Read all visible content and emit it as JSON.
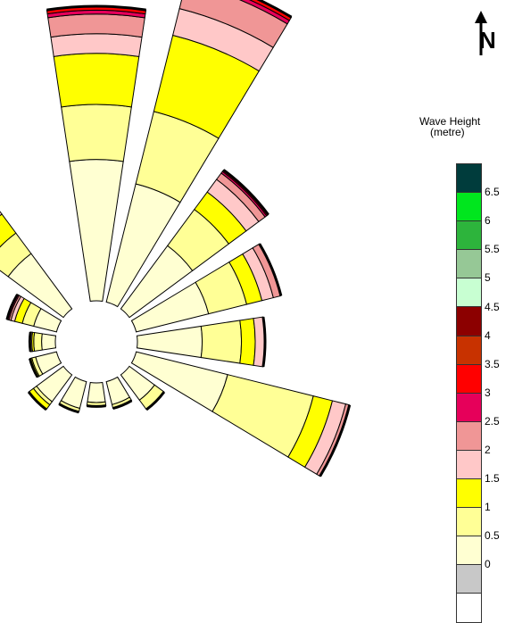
{
  "north_label": "N",
  "chart_data": {
    "type": "wave-rose",
    "title": "",
    "legend": {
      "title_line1": "Wave Height",
      "title_line2": "(metre)",
      "ticks": [
        "6.5",
        "6",
        "5.5",
        "5",
        "4.5",
        "4",
        "3.5",
        "3",
        "2.5",
        "2",
        "1.5",
        "1",
        "0.5",
        "0"
      ],
      "bins": [
        {
          "range": "> 6.5",
          "color": "#003c3c"
        },
        {
          "range": "6 - 6.5",
          "color": "#00e61e"
        },
        {
          "range": "5.5 - 6",
          "color": "#2db43c"
        },
        {
          "range": "5 - 5.5",
          "color": "#96c896"
        },
        {
          "range": "4.5 - 5",
          "color": "#c8ffd2"
        },
        {
          "range": "4 - 4.5",
          "color": "#8c0000"
        },
        {
          "range": "3.5 - 4",
          "color": "#c83200"
        },
        {
          "range": "3 - 3.5",
          "color": "#ff0000"
        },
        {
          "range": "2.5 - 3",
          "color": "#e6005a"
        },
        {
          "range": "2 - 2.5",
          "color": "#f09696"
        },
        {
          "range": "1.5 - 2",
          "color": "#ffc8c8"
        },
        {
          "range": "1 - 1.5",
          "color": "#ffff00"
        },
        {
          "range": "0.5 - 1",
          "color": "#ffff96"
        },
        {
          "range": "0 - 0.5",
          "color": "#ffffd2"
        },
        {
          "range": "calm",
          "color": "#c8c8c8"
        },
        {
          "range": "",
          "color": "#ffffff"
        }
      ]
    },
    "directions": [
      {
        "dir": "N",
        "angle": 0,
        "levels": [
          0.72,
          1.0,
          1.26,
          1.36,
          1.46,
          1.48,
          1.5
        ]
      },
      {
        "dir": "NNE",
        "angle": 22.5,
        "levels": [
          0.62,
          1.0,
          1.4,
          1.54,
          1.68,
          1.7,
          1.72
        ]
      },
      {
        "dir": "NE",
        "angle": 45,
        "levels": [
          0.4,
          0.63,
          0.74,
          0.82,
          0.86,
          0.87,
          0.88
        ]
      },
      {
        "dir": "ENE",
        "angle": 67.5,
        "levels": [
          0.38,
          0.58,
          0.66,
          0.72,
          0.76
        ]
      },
      {
        "dir": "E",
        "angle": 90,
        "levels": [
          0.33,
          0.53,
          0.6,
          0.65
        ]
      },
      {
        "dir": "ESE",
        "angle": 112.5,
        "levels": [
          0.48,
          0.93,
          1.03,
          1.1,
          1.12
        ]
      },
      {
        "dir": "SE",
        "angle": 135,
        "levels": [
          0.16,
          0.22
        ]
      },
      {
        "dir": "SSE",
        "angle": 157.5,
        "levels": [
          0.12,
          0.14
        ]
      },
      {
        "dir": "S",
        "angle": 180,
        "levels": [
          0.1,
          0.12
        ]
      },
      {
        "dir": "SSW",
        "angle": 202.5,
        "levels": [
          0.14,
          0.16
        ]
      },
      {
        "dir": "SW",
        "angle": 225,
        "levels": [
          0.17,
          0.19,
          0.22
        ]
      },
      {
        "dir": "WSW",
        "angle": 247.5,
        "levels": [
          0.11,
          0.13,
          0.14
        ]
      },
      {
        "dir": "W",
        "angle": 270,
        "levels": [
          0.07,
          0.11,
          0.12,
          0.13
        ]
      },
      {
        "dir": "WNW",
        "angle": 292.5,
        "levels": [
          0.12,
          0.18,
          0.22,
          0.24,
          0.25,
          0.26
        ]
      },
      {
        "dir": "NW",
        "angle": 315,
        "levels": [
          0.35,
          0.48,
          0.6,
          0.66,
          0.71,
          0.74,
          0.76
        ]
      }
    ]
  }
}
